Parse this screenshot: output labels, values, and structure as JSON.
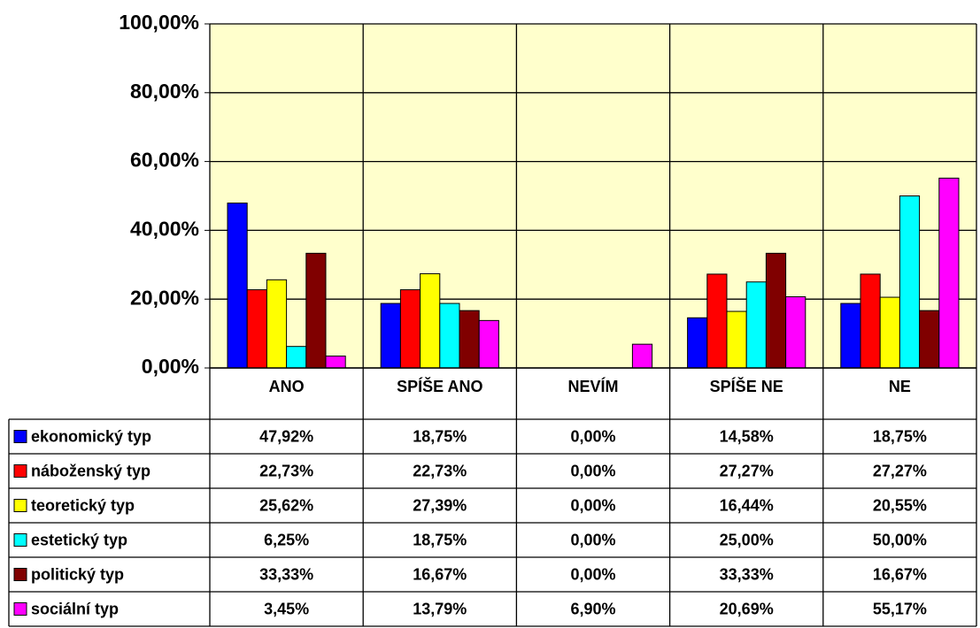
{
  "chart_data": {
    "type": "bar",
    "categories": [
      "ANO",
      "SPÍŠE ANO",
      "NEVÍM",
      "SPÍŠE NE",
      "NE"
    ],
    "series": [
      {
        "name": "ekonomický typ",
        "color": "#0000ff",
        "values": [
          47.92,
          18.75,
          0,
          14.58,
          18.75
        ],
        "value_labels": [
          "47,92%",
          "18,75%",
          "0,00%",
          "14,58%",
          "18,75%"
        ]
      },
      {
        "name": "náboženský typ",
        "color": "#ff0000",
        "values": [
          22.73,
          22.73,
          0,
          27.27,
          27.27
        ],
        "value_labels": [
          "22,73%",
          "22,73%",
          "0,00%",
          "27,27%",
          "27,27%"
        ]
      },
      {
        "name": "teoretický typ",
        "color": "#ffff00",
        "values": [
          25.62,
          27.39,
          0,
          16.44,
          20.55
        ],
        "value_labels": [
          "25,62%",
          "27,39%",
          "0,00%",
          "16,44%",
          "20,55%"
        ]
      },
      {
        "name": "estetický typ",
        "color": "#00ffff",
        "values": [
          6.25,
          18.75,
          0,
          25,
          50
        ],
        "value_labels": [
          "6,25%",
          "18,75%",
          "0,00%",
          "25,00%",
          "50,00%"
        ]
      },
      {
        "name": "politický typ",
        "color": "#800000",
        "values": [
          33.33,
          16.67,
          0,
          33.33,
          16.67
        ],
        "value_labels": [
          "33,33%",
          "16,67%",
          "0,00%",
          "33,33%",
          "16,67%"
        ]
      },
      {
        "name": "sociální typ",
        "color": "#ff00ff",
        "values": [
          3.45,
          13.79,
          6.9,
          20.69,
          55.17
        ],
        "value_labels": [
          "3,45%",
          "13,79%",
          "6,90%",
          "20,69%",
          "55,17%"
        ]
      }
    ],
    "ylim": [
      0,
      100
    ],
    "yticks": [
      {
        "value": 0,
        "label": "0,00%"
      },
      {
        "value": 20,
        "label": "20,00%"
      },
      {
        "value": 40,
        "label": "40,00%"
      },
      {
        "value": 60,
        "label": "60,00%"
      },
      {
        "value": 80,
        "label": "80,00%"
      },
      {
        "value": 100,
        "label": "100,00%"
      }
    ],
    "grid": true,
    "plot_background": "#ffffcc"
  }
}
